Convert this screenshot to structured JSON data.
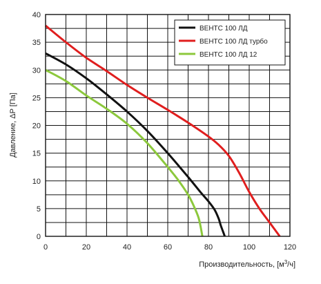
{
  "chart_data": {
    "type": "line",
    "title": "",
    "xlabel": "Производительность, [м",
    "xlabel_sup": "3",
    "xlabel_tail": "/ч]",
    "ylabel": "Давление, ΔP [Па]",
    "xlim": [
      0,
      120
    ],
    "ylim": [
      0,
      40
    ],
    "x_ticks": [
      "0",
      "20",
      "40",
      "60",
      "80",
      "100",
      "120"
    ],
    "y_ticks": [
      "0",
      "5",
      "10",
      "15",
      "20",
      "25",
      "30",
      "35",
      "40"
    ],
    "grid": true,
    "legend_position": "top-right",
    "series": [
      {
        "name": "ВЕНТС 100 ЛД",
        "color": "#111111",
        "x": [
          0,
          10,
          20,
          30,
          40,
          50,
          60,
          70,
          76,
          80,
          83,
          85,
          86,
          87,
          88
        ],
        "y": [
          33,
          31,
          28.5,
          25.6,
          22.5,
          19,
          15,
          10.7,
          8,
          6.3,
          4.8,
          3.2,
          2,
          1,
          0
        ]
      },
      {
        "name": "ВЕНТС 100 ЛД турбо",
        "color": "#e01e1e",
        "x": [
          0,
          10,
          20,
          30,
          40,
          50,
          60,
          70,
          80,
          85,
          90,
          95,
          100,
          105,
          110,
          115
        ],
        "y": [
          38,
          35,
          32.2,
          29.8,
          27.3,
          25,
          22.8,
          20.5,
          18,
          16.5,
          14.5,
          11.5,
          8,
          5,
          2.5,
          0
        ]
      },
      {
        "name": "ВЕНТС 100 ЛД  12",
        "color": "#8cc83c",
        "x": [
          0,
          10,
          20,
          30,
          40,
          50,
          60,
          65,
          70,
          73,
          75,
          76,
          77
        ],
        "y": [
          30,
          28,
          25.4,
          23,
          20.3,
          16.8,
          12.5,
          10.2,
          7.5,
          5.3,
          3.5,
          2,
          0
        ]
      }
    ]
  }
}
